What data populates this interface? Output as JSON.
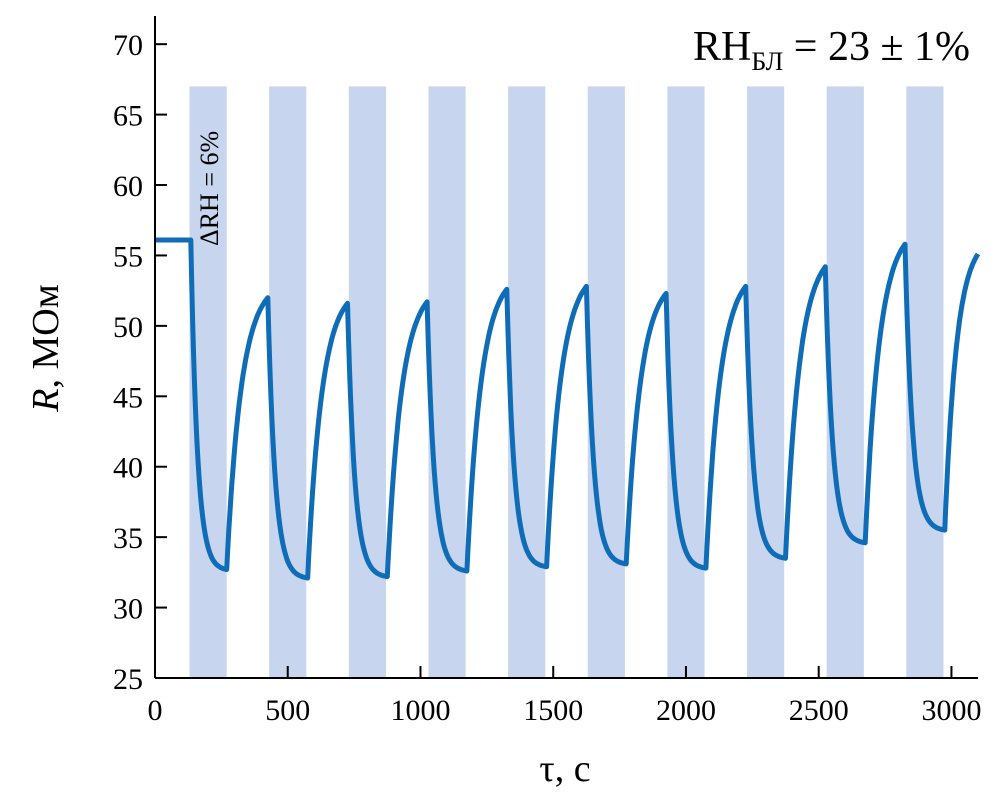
{
  "chart_data": {
    "type": "line",
    "xlabel": "τ, с",
    "ylabel_var": "R",
    "ylabel_unit": ", МОм",
    "xlim": [
      0,
      3100
    ],
    "ylim": [
      25,
      72
    ],
    "xticks": [
      0,
      500,
      1000,
      1500,
      2000,
      2500,
      3000
    ],
    "yticks": [
      25,
      30,
      35,
      40,
      45,
      50,
      55,
      60,
      65,
      70
    ],
    "grid": false,
    "annotation_main": {
      "prefix": "RH",
      "subscript": "БЛ",
      "suffix": " = 23 ± 1%"
    },
    "annotation_band": "ΔRH = 6%",
    "colors": {
      "line": "#0f6db8",
      "band": "#c7d5ee"
    },
    "humidity_pulses": [
      [
        130,
        270
      ],
      [
        430,
        570
      ],
      [
        730,
        870
      ],
      [
        1030,
        1170
      ],
      [
        1330,
        1470
      ],
      [
        1630,
        1770
      ],
      [
        1930,
        2070
      ],
      [
        2230,
        2370
      ],
      [
        2530,
        2670
      ],
      [
        2830,
        2970
      ]
    ],
    "series": [
      {
        "baseline_start": 0,
        "baseline_end": 135,
        "baseline_value": 56.1,
        "cycles": [
          {
            "t_start": 135,
            "r_start": 56.1,
            "t_min": 270,
            "r_min": 32.7,
            "t_max": 425,
            "r_max": 52.0
          },
          {
            "t_start": 425,
            "r_start": 52.0,
            "t_min": 575,
            "r_min": 32.1,
            "t_max": 725,
            "r_max": 51.6
          },
          {
            "t_start": 725,
            "r_start": 51.6,
            "t_min": 875,
            "r_min": 32.2,
            "t_max": 1025,
            "r_max": 51.7
          },
          {
            "t_start": 1025,
            "r_start": 51.7,
            "t_min": 1175,
            "r_min": 32.6,
            "t_max": 1325,
            "r_max": 52.6
          },
          {
            "t_start": 1325,
            "r_start": 52.6,
            "t_min": 1475,
            "r_min": 32.9,
            "t_max": 1625,
            "r_max": 52.8
          },
          {
            "t_start": 1625,
            "r_start": 52.8,
            "t_min": 1775,
            "r_min": 33.1,
            "t_max": 1925,
            "r_max": 52.3
          },
          {
            "t_start": 1925,
            "r_start": 52.3,
            "t_min": 2075,
            "r_min": 32.8,
            "t_max": 2225,
            "r_max": 52.8
          },
          {
            "t_start": 2225,
            "r_start": 52.8,
            "t_min": 2375,
            "r_min": 33.5,
            "t_max": 2525,
            "r_max": 54.2
          },
          {
            "t_start": 2525,
            "r_start": 54.2,
            "t_min": 2675,
            "r_min": 34.6,
            "t_max": 2825,
            "r_max": 55.8
          },
          {
            "t_start": 2825,
            "r_start": 55.8,
            "t_min": 2975,
            "r_min": 35.5,
            "t_max": 3100,
            "r_max": 55.1
          }
        ]
      }
    ]
  }
}
